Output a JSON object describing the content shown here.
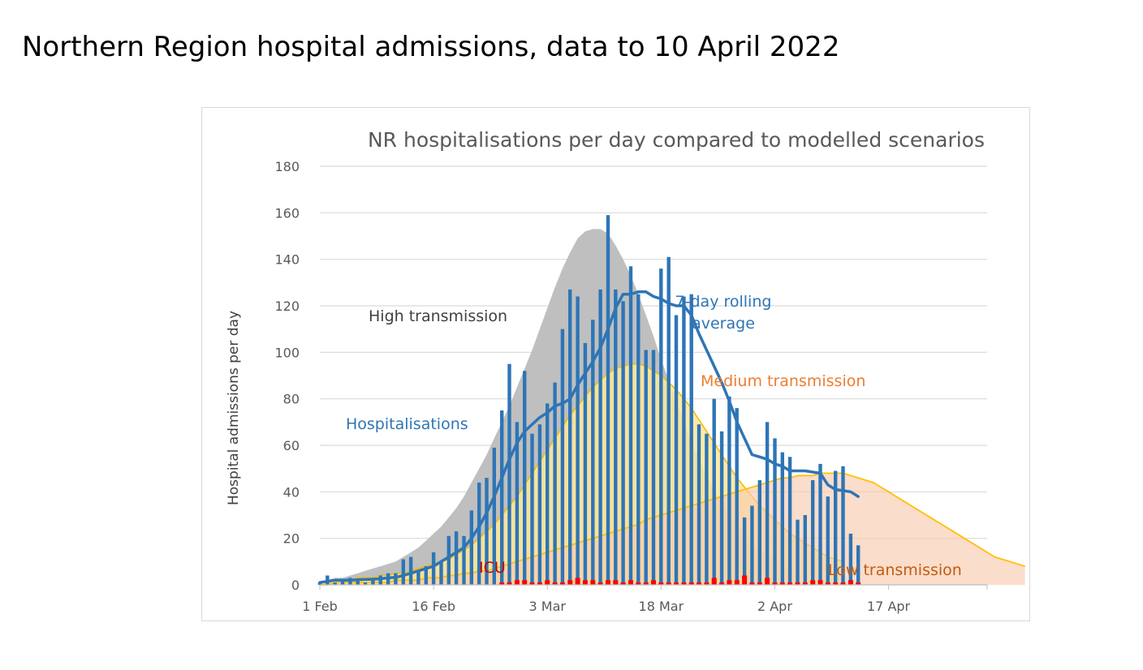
{
  "slide": {
    "title": "Northern Region hospital admissions, data to 10 April 2022"
  },
  "chart_data": {
    "type": "bar",
    "title": "NR hospitalisations per day compared to modelled scenarios",
    "xlabel": "",
    "ylabel": "Hospital admissions per day",
    "ylim": [
      0,
      180
    ],
    "yticks": [
      0,
      20,
      40,
      60,
      80,
      100,
      120,
      140,
      160,
      180
    ],
    "x_range": [
      "2022-02-01",
      "2022-04-30"
    ],
    "x_ticks": [
      {
        "date": "2022-02-01",
        "label": "1 Feb"
      },
      {
        "date": "2022-02-16",
        "label": "16 Feb"
      },
      {
        "date": "2022-03-03",
        "label": "3 Mar"
      },
      {
        "date": "2022-03-18",
        "label": "18 Mar"
      },
      {
        "date": "2022-04-02",
        "label": "2 Apr"
      },
      {
        "date": "2022-04-17",
        "label": "17 Apr"
      }
    ],
    "grid": true,
    "colors": {
      "hospitalisations": "#2e75b6",
      "rolling": "#2e75b6",
      "icu": "#ff0000",
      "high_fill": "#bfbfbf",
      "medium_fill": "#ffe699",
      "medium_line": "#f2b900",
      "low_fill": "#f8cbad",
      "low_line": "#ffc000",
      "high_label": "#404040",
      "medium_label": "#ed7d31",
      "low_label": "#c55a11",
      "icu_label": "#c00000",
      "grid": "#d9d9d9",
      "axis_text": "#595959"
    },
    "annotations": {
      "high": "High transmission",
      "medium": "Medium transmission",
      "low": "Low transmission",
      "hospitalisations": "Hospitalisations",
      "rolling_line1": "7-day rolling",
      "rolling_line2": "average",
      "icu": "ICU"
    },
    "series": [
      {
        "key": "high",
        "kind": "area",
        "start_date": "2022-02-01",
        "values": [
          1,
          2,
          3,
          3,
          4,
          5,
          6,
          7,
          8,
          9,
          10,
          12,
          14,
          16,
          19,
          22,
          25,
          29,
          33,
          38,
          44,
          50,
          56,
          63,
          70,
          77,
          85,
          93,
          101,
          110,
          119,
          128,
          136,
          143,
          149,
          152,
          153,
          153,
          151,
          146,
          140,
          133,
          125,
          116,
          107,
          97,
          88,
          79,
          70,
          62,
          54,
          47,
          41,
          35,
          30,
          26,
          22,
          18,
          15,
          13,
          11,
          9,
          7
        ]
      },
      {
        "key": "medium",
        "kind": "area",
        "start_date": "2022-02-01",
        "values": [
          1,
          1,
          2,
          2,
          2,
          3,
          3,
          3,
          4,
          4,
          5,
          5,
          6,
          7,
          8,
          9,
          10,
          11,
          13,
          15,
          17,
          20,
          23,
          26,
          30,
          34,
          38,
          43,
          48,
          53,
          58,
          63,
          68,
          73,
          77,
          81,
          85,
          88,
          91,
          93,
          94,
          95,
          95,
          94,
          92,
          90,
          87,
          84,
          80,
          76,
          71,
          66,
          61,
          56,
          51,
          46,
          42,
          38,
          34,
          31,
          28,
          25,
          22,
          20,
          18,
          16,
          14,
          12,
          11,
          10
        ]
      },
      {
        "key": "low",
        "kind": "area",
        "start_date": "2022-02-01",
        "values": [
          0,
          0,
          1,
          1,
          1,
          1,
          1,
          1,
          1,
          1,
          2,
          2,
          2,
          2,
          3,
          3,
          3,
          4,
          4,
          5,
          5,
          6,
          6,
          7,
          8,
          9,
          10,
          11,
          12,
          13,
          14,
          15,
          16,
          17,
          18,
          19,
          20,
          21,
          22,
          23,
          24,
          25,
          26,
          28,
          29,
          30,
          31,
          32,
          33,
          34,
          35,
          36,
          37,
          38,
          39,
          40,
          41,
          42,
          43,
          44,
          45,
          46,
          46,
          47,
          47,
          47,
          48,
          48,
          48,
          48,
          47,
          46,
          45,
          44,
          42,
          40,
          38,
          36,
          34,
          32,
          30,
          28,
          26,
          24,
          22,
          20,
          18,
          16,
          14,
          12,
          11,
          10,
          9,
          8
        ]
      },
      {
        "name": "Hospitalisations",
        "key": "hospitalisations",
        "kind": "bar",
        "start_date": "2022-02-01",
        "values": [
          1,
          4,
          1,
          2,
          3,
          2,
          1,
          3,
          4,
          5,
          5,
          11,
          12,
          6,
          8,
          14,
          10,
          21,
          23,
          21,
          32,
          44,
          46,
          59,
          75,
          95,
          70,
          92,
          65,
          69,
          78,
          87,
          110,
          127,
          124,
          104,
          114,
          127,
          159,
          127,
          122,
          137,
          125,
          101,
          101,
          136,
          141,
          116,
          124,
          125,
          69,
          65,
          80,
          66,
          81,
          76,
          29,
          34,
          45,
          70,
          63,
          57,
          55,
          28,
          30,
          45,
          52,
          38,
          49,
          51,
          22,
          17
        ]
      },
      {
        "name": "ICU",
        "key": "icu",
        "kind": "bar",
        "start_date": "2022-02-01",
        "values": [
          0,
          0,
          0,
          0,
          0,
          0,
          0,
          0,
          0,
          0,
          0,
          0,
          0,
          0,
          0,
          0,
          0,
          0,
          0,
          0,
          0,
          0,
          0,
          0,
          1,
          1,
          2,
          2,
          1,
          1,
          2,
          1,
          1,
          2,
          3,
          2,
          2,
          1,
          2,
          2,
          1,
          2,
          1,
          1,
          2,
          1,
          1,
          1,
          1,
          1,
          1,
          1,
          3,
          1,
          2,
          2,
          4,
          1,
          1,
          3,
          1,
          1,
          1,
          1,
          1,
          2,
          2,
          1,
          1,
          1,
          2,
          1
        ]
      },
      {
        "name": "7-day rolling average",
        "key": "rolling",
        "kind": "line",
        "start_date": "2022-02-01",
        "values": [
          1,
          1.5,
          2,
          2,
          2,
          2.2,
          2.3,
          2.4,
          2.6,
          3,
          3.2,
          4,
          5,
          6,
          7,
          8,
          10,
          12,
          14,
          16,
          20,
          25,
          31,
          38,
          46,
          54,
          61,
          66,
          69,
          72,
          74,
          77,
          78,
          80,
          86,
          91,
          96,
          102,
          110,
          119,
          125,
          125,
          126,
          126,
          124,
          123,
          121,
          120,
          120,
          116,
          108,
          101,
          94,
          87,
          79,
          70,
          63,
          56,
          55,
          54,
          52,
          51,
          49,
          49,
          49,
          48.5,
          48,
          43,
          41,
          40.5,
          40,
          38
        ]
      }
    ]
  }
}
